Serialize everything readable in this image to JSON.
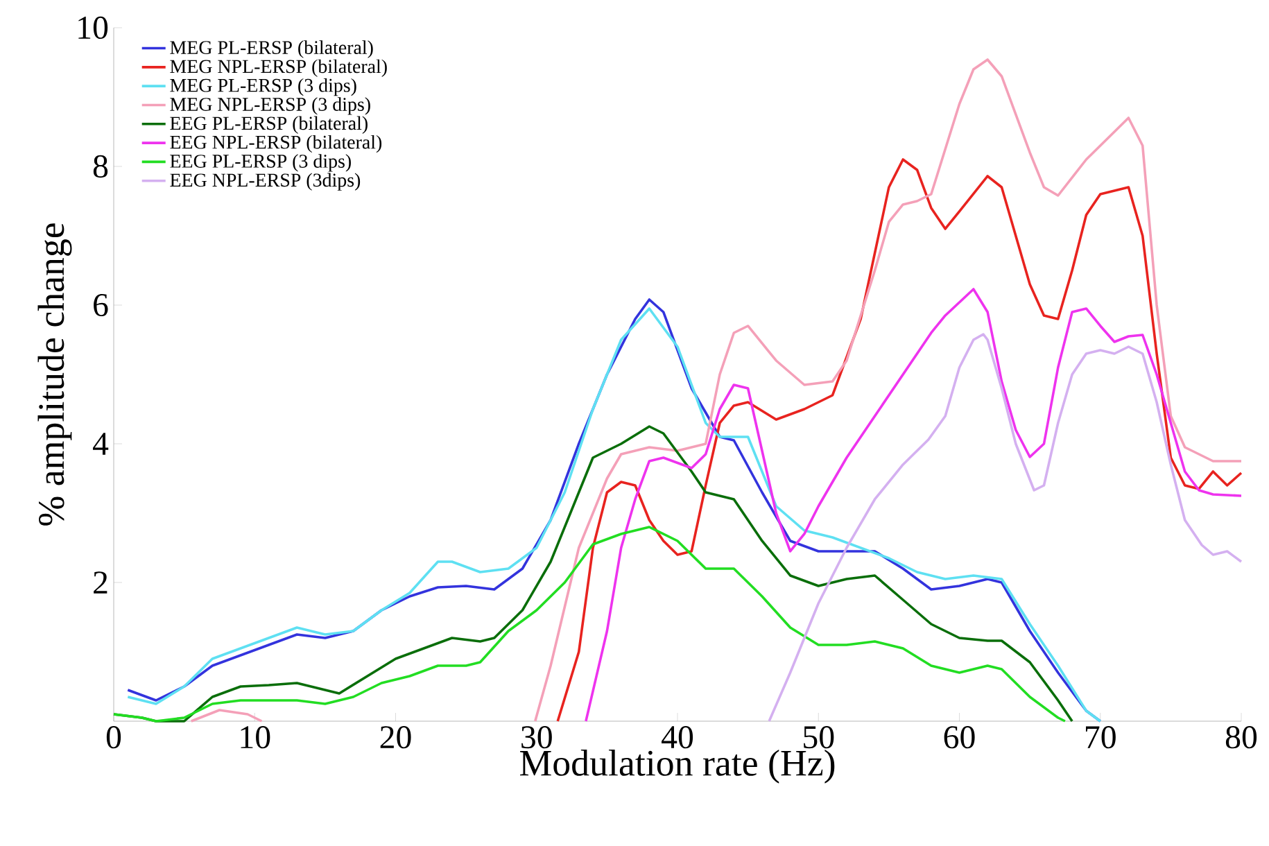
{
  "chart_data": {
    "type": "line",
    "xlabel": "Modulation rate (Hz)",
    "ylabel": "% amplitude change",
    "xlim": [
      0,
      80
    ],
    "ylim": [
      0,
      10
    ],
    "xticks": [
      0,
      10,
      20,
      30,
      40,
      50,
      60,
      70,
      80
    ],
    "yticks": [
      2,
      4,
      6,
      8,
      10
    ],
    "legend": "top left",
    "series": [
      {
        "name": "MEG PL-ERSP (bilateral)",
        "color": "#3333dd",
        "x": [
          1,
          3,
          5,
          7,
          9,
          11,
          13,
          15,
          17,
          19,
          21,
          23,
          25,
          27,
          29,
          31,
          33,
          35,
          37,
          38,
          39,
          41,
          43,
          44,
          46,
          48,
          50,
          52,
          54,
          56,
          58,
          60,
          62,
          63,
          65,
          67,
          69,
          70
        ],
        "values": [
          0.45,
          0.3,
          0.5,
          0.8,
          0.95,
          1.1,
          1.25,
          1.2,
          1.3,
          1.6,
          1.8,
          1.93,
          1.95,
          1.9,
          2.2,
          2.9,
          4.0,
          5.0,
          5.8,
          6.08,
          5.9,
          4.8,
          4.1,
          4.05,
          3.3,
          2.6,
          2.45,
          2.45,
          2.45,
          2.2,
          1.9,
          1.95,
          2.05,
          2.0,
          1.3,
          0.7,
          0.15,
          0
        ]
      },
      {
        "name": "MEG NPL-ERSP (bilateral)",
        "color": "#e8231f",
        "x": [
          31.5,
          33,
          34,
          35,
          36,
          37,
          38,
          39,
          40,
          41,
          42,
          43,
          44,
          45,
          47,
          49,
          51,
          53,
          55,
          56,
          57,
          58,
          59,
          60,
          62,
          63,
          65,
          66,
          67,
          68,
          69,
          70,
          72,
          73,
          74,
          75,
          76,
          77,
          78,
          79,
          80
        ],
        "values": [
          0,
          1.0,
          2.5,
          3.3,
          3.45,
          3.4,
          2.9,
          2.6,
          2.4,
          2.45,
          3.4,
          4.3,
          4.55,
          4.6,
          4.35,
          4.5,
          4.7,
          5.8,
          7.7,
          8.1,
          7.95,
          7.4,
          7.1,
          7.35,
          7.86,
          7.7,
          6.3,
          5.85,
          5.8,
          6.5,
          7.3,
          7.6,
          7.7,
          7.0,
          5.3,
          3.8,
          3.4,
          3.35,
          3.6,
          3.4,
          3.58
        ]
      },
      {
        "name": "MEG PL-ERSP (3 dips)",
        "color": "#5ee0f2",
        "x": [
          1,
          3,
          5,
          7,
          9,
          11,
          13,
          15,
          17,
          19,
          21,
          23,
          24,
          26,
          28,
          30,
          32,
          34,
          36,
          38,
          40,
          42,
          43,
          45,
          47,
          49,
          51,
          53,
          55,
          57,
          59,
          61,
          63,
          65,
          67,
          69,
          70
        ],
        "values": [
          0.35,
          0.25,
          0.5,
          0.9,
          1.05,
          1.2,
          1.35,
          1.25,
          1.3,
          1.6,
          1.85,
          2.3,
          2.3,
          2.15,
          2.2,
          2.5,
          3.3,
          4.5,
          5.5,
          5.95,
          5.4,
          4.3,
          4.1,
          4.1,
          3.1,
          2.75,
          2.65,
          2.5,
          2.35,
          2.15,
          2.05,
          2.1,
          2.05,
          1.4,
          0.8,
          0.15,
          0
        ]
      },
      {
        "name": "MEG NPL-ERSP (3 dips)",
        "color": "#f4a0b8",
        "x": [
          5.5,
          7.5,
          9.5,
          10.5,
          20,
          29.9,
          31,
          33,
          35,
          36,
          38,
          40,
          42,
          43,
          44,
          45,
          47,
          49,
          51,
          52,
          54,
          55,
          56,
          57,
          58,
          60,
          61,
          62,
          63,
          65,
          66,
          67,
          69,
          71,
          72,
          73,
          74,
          75,
          76,
          78,
          80
        ],
        "values": [
          0,
          0.16,
          0.1,
          0,
          null,
          0,
          0.8,
          2.5,
          3.5,
          3.85,
          3.95,
          3.9,
          4.0,
          5.0,
          5.6,
          5.7,
          5.2,
          4.85,
          4.9,
          5.2,
          6.5,
          7.2,
          7.45,
          7.5,
          7.6,
          8.9,
          9.4,
          9.54,
          9.3,
          8.2,
          7.7,
          7.58,
          8.1,
          8.5,
          8.7,
          8.3,
          6.0,
          4.4,
          3.95,
          3.75,
          3.75
        ]
      },
      {
        "name": "EEG PL-ERSP (bilateral)",
        "color": "#0a6e0a",
        "x": [
          0,
          2,
          3,
          5,
          7,
          9,
          11,
          13,
          15,
          16,
          18,
          20,
          22,
          24,
          26,
          27,
          29,
          31,
          33,
          34,
          36,
          38,
          39,
          41,
          42,
          44,
          46,
          48,
          50,
          52,
          54,
          56,
          58,
          60,
          62,
          63,
          65,
          67,
          68
        ],
        "values": [
          0.1,
          0.05,
          0,
          0,
          0.35,
          0.5,
          0.52,
          0.55,
          0.45,
          0.4,
          0.65,
          0.9,
          1.05,
          1.2,
          1.15,
          1.2,
          1.6,
          2.3,
          3.3,
          3.8,
          4.0,
          4.25,
          4.15,
          3.6,
          3.3,
          3.2,
          2.6,
          2.1,
          1.95,
          2.05,
          2.1,
          1.75,
          1.4,
          1.2,
          1.16,
          1.16,
          0.85,
          0.3,
          0
        ]
      },
      {
        "name": "EEG NPL-ERSP (bilateral)",
        "color": "#ee33ee",
        "x": [
          33.5,
          35,
          36,
          37,
          38,
          39,
          41,
          42,
          43,
          44,
          45,
          46,
          47,
          48,
          49,
          50,
          52,
          54,
          56,
          58,
          59,
          61,
          62,
          63,
          64,
          65,
          66,
          67,
          68,
          69,
          70,
          71,
          72,
          73,
          74,
          75,
          76,
          77,
          78,
          80
        ],
        "values": [
          0,
          1.3,
          2.5,
          3.2,
          3.75,
          3.8,
          3.65,
          3.85,
          4.5,
          4.85,
          4.8,
          3.9,
          3.0,
          2.45,
          2.7,
          3.1,
          3.8,
          4.4,
          5.0,
          5.6,
          5.85,
          6.23,
          5.9,
          4.9,
          4.2,
          3.81,
          4.0,
          5.1,
          5.9,
          5.95,
          5.7,
          5.47,
          5.55,
          5.57,
          5.0,
          4.3,
          3.6,
          3.33,
          3.27,
          3.25
        ]
      },
      {
        "name": "EEG PL-ERSP (3 dips)",
        "color": "#22dd22",
        "x": [
          0,
          2,
          3,
          5,
          7,
          9,
          11,
          13,
          15,
          17,
          19,
          21,
          23,
          25,
          26,
          28,
          30,
          32,
          34,
          36,
          38,
          40,
          42,
          44,
          46,
          48,
          50,
          52,
          54,
          56,
          58,
          60,
          62,
          63,
          65,
          67,
          67.5
        ],
        "values": [
          0.1,
          0.05,
          0,
          0.05,
          0.25,
          0.3,
          0.3,
          0.3,
          0.25,
          0.35,
          0.55,
          0.65,
          0.8,
          0.8,
          0.85,
          1.3,
          1.6,
          2.0,
          2.55,
          2.7,
          2.8,
          2.6,
          2.2,
          2.2,
          1.8,
          1.35,
          1.1,
          1.1,
          1.15,
          1.05,
          0.8,
          0.7,
          0.8,
          0.75,
          0.35,
          0.05,
          0
        ]
      },
      {
        "name": "EEG NPL-ERSP (3dips)",
        "color": "#d4b0f0",
        "x": [
          46.5,
          48,
          49,
          50,
          52,
          54,
          56,
          57.8,
          59,
          60,
          61,
          61.7,
          62,
          63,
          64,
          65.3,
          66,
          67,
          68,
          69,
          70,
          71,
          72,
          73,
          74,
          75,
          76,
          77.2,
          78,
          79,
          80
        ],
        "values": [
          0,
          0.7,
          1.2,
          1.7,
          2.5,
          3.2,
          3.7,
          4.06,
          4.4,
          5.1,
          5.5,
          5.58,
          5.5,
          4.8,
          4.0,
          3.33,
          3.4,
          4.3,
          5.0,
          5.3,
          5.35,
          5.3,
          5.4,
          5.3,
          4.6,
          3.7,
          2.9,
          2.54,
          2.4,
          2.45,
          2.3
        ]
      }
    ]
  }
}
